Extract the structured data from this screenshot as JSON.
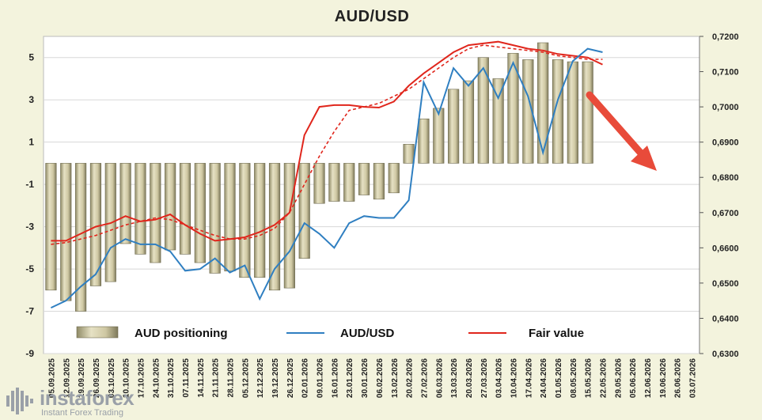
{
  "chart_data": {
    "type": "bar+line",
    "title": "AUD/USD",
    "legend": [
      {
        "label": "AUD positioning",
        "kind": "bar",
        "color": "#c9c3a0"
      },
      {
        "label": "AUD/USD",
        "kind": "line",
        "color": "#2f7fc1"
      },
      {
        "label": "Fair value",
        "kind": "line",
        "color": "#e0261c"
      }
    ],
    "left_axis": {
      "min": -9,
      "max": 6,
      "ticks": [
        5,
        3,
        1,
        -1,
        -3,
        -5,
        -7,
        -9
      ]
    },
    "right_axis": {
      "min": 0.63,
      "max": 0.72,
      "ticks": [
        "0,7200",
        "0,7100",
        "0,7000",
        "0,6900",
        "0,6800",
        "0,6700",
        "0,6600",
        "0,6500",
        "0,6400",
        "0,6300"
      ]
    },
    "categories": [
      "12.09.2025",
      "19.09.2025",
      "26.09.2025",
      "03.10.2025",
      "10.10.2025",
      "17.10.2025",
      "24.10.2025",
      "31.10.2025",
      "07.11.2025",
      "14.11.2025",
      "21.11.2025",
      "28.11.2025",
      "05.12.2025",
      "12.12.2025",
      "19.12.2025",
      "26.12.2025",
      "02.01.2026",
      "09.01.2026",
      "16.01.2026",
      "23.01.2026",
      "30.01.2026",
      "06.02.2026",
      "13.02.2026",
      "20.02.2026",
      "27.02.2026",
      "06.03.2026",
      "13.03.2026",
      "20.03.2026",
      "27.03.2026",
      "03.04.2026",
      "10.04.2026",
      "17.04.2026",
      "24.04.2026",
      "01.05.2026",
      "08.05.2026",
      "15.05.2026",
      "22.05.2026",
      "29.05.2026",
      "05.06.2026",
      "12.06.2026",
      "19.06.2026",
      "26.06.2026",
      "03.07.2026"
    ],
    "x_labels": [
      "05.09.2025",
      "12.09.2025",
      "19.09.2025",
      "26.09.2025",
      "03.10.2025",
      "10.10.2025",
      "17.10.2025",
      "24.10.2025",
      "31.10.2025",
      "07.11.2025",
      "14.11.2025",
      "21.11.2025",
      "28.11.2025",
      "05.12.2025",
      "12.12.2025",
      "19.12.2025",
      "26.12.2025",
      "02.01.2026",
      "09.01.2026",
      "16.01.2026",
      "23.01.2026",
      "30.01.2026",
      "06.02.2026",
      "13.02.2026",
      "20.02.2026",
      "27.02.2026",
      "06.03.2026",
      "13.03.2026",
      "20.03.2026",
      "27.03.2026",
      "03.04.2026",
      "10.04.2026",
      "17.04.2026",
      "24.04.2026",
      "01.05.2026",
      "08.05.2026",
      "15.05.2026",
      "22.05.2026",
      "29.05.2026",
      "05.06.2026",
      "12.06.2026",
      "19.06.2026",
      "26.06.2026",
      "03.07.2026"
    ],
    "positioning": [
      -6.0,
      -6.5,
      -7.0,
      -5.8,
      -5.6,
      -3.8,
      -4.3,
      -4.7,
      -4.1,
      -4.3,
      -4.7,
      -5.2,
      -5.1,
      -5.4,
      -5.4,
      -6.0,
      -5.9,
      -4.5,
      -1.9,
      -1.8,
      -1.8,
      -1.5,
      -1.7,
      -1.4,
      0.9,
      2.1,
      2.6,
      3.5,
      3.9,
      5.0,
      4.0,
      5.2,
      4.9,
      5.7,
      4.9,
      4.8,
      4.8
    ],
    "audusd": [
      0.643,
      0.645,
      0.649,
      0.6525,
      0.66,
      0.6625,
      0.661,
      0.661,
      0.659,
      0.6535,
      0.654,
      0.657,
      0.653,
      0.655,
      0.6455,
      0.654,
      0.659,
      0.667,
      0.664,
      0.66,
      0.667,
      0.669,
      0.6685,
      0.6685,
      0.6735,
      0.707,
      0.698,
      0.711,
      0.706,
      0.711,
      0.7025,
      0.7125,
      0.703,
      0.687,
      0.702,
      0.713,
      0.7165,
      0.7155
    ],
    "fair_value": [
      0.662,
      0.662,
      0.664,
      0.666,
      0.667,
      0.669,
      0.6675,
      0.668,
      0.6695,
      0.6665,
      0.664,
      0.662,
      0.6625,
      0.663,
      0.6645,
      0.6665,
      0.67,
      0.692,
      0.7,
      0.7005,
      0.7005,
      0.7,
      0.6998,
      0.7015,
      0.706,
      0.7095,
      0.7125,
      0.7155,
      0.7175,
      0.718,
      0.7185,
      0.7175,
      0.7165,
      0.716,
      0.715,
      0.7145,
      0.714,
      0.712
    ],
    "fair_value_ma": [
      0.661,
      0.6615,
      0.6625,
      0.6635,
      0.665,
      0.6665,
      0.6675,
      0.6685,
      0.668,
      0.6665,
      0.665,
      0.6635,
      0.6625,
      0.6625,
      0.6635,
      0.6655,
      0.67,
      0.678,
      0.686,
      0.693,
      0.699,
      0.7,
      0.701,
      0.703,
      0.705,
      0.708,
      0.711,
      0.714,
      0.7165,
      0.7175,
      0.717,
      0.7165,
      0.716,
      0.7155,
      0.7145,
      0.714,
      0.7135,
      0.7135
    ],
    "annotation": "downward-arrow"
  },
  "brand": {
    "name": "instaforex",
    "tagline": "Instant Forex Trading"
  }
}
